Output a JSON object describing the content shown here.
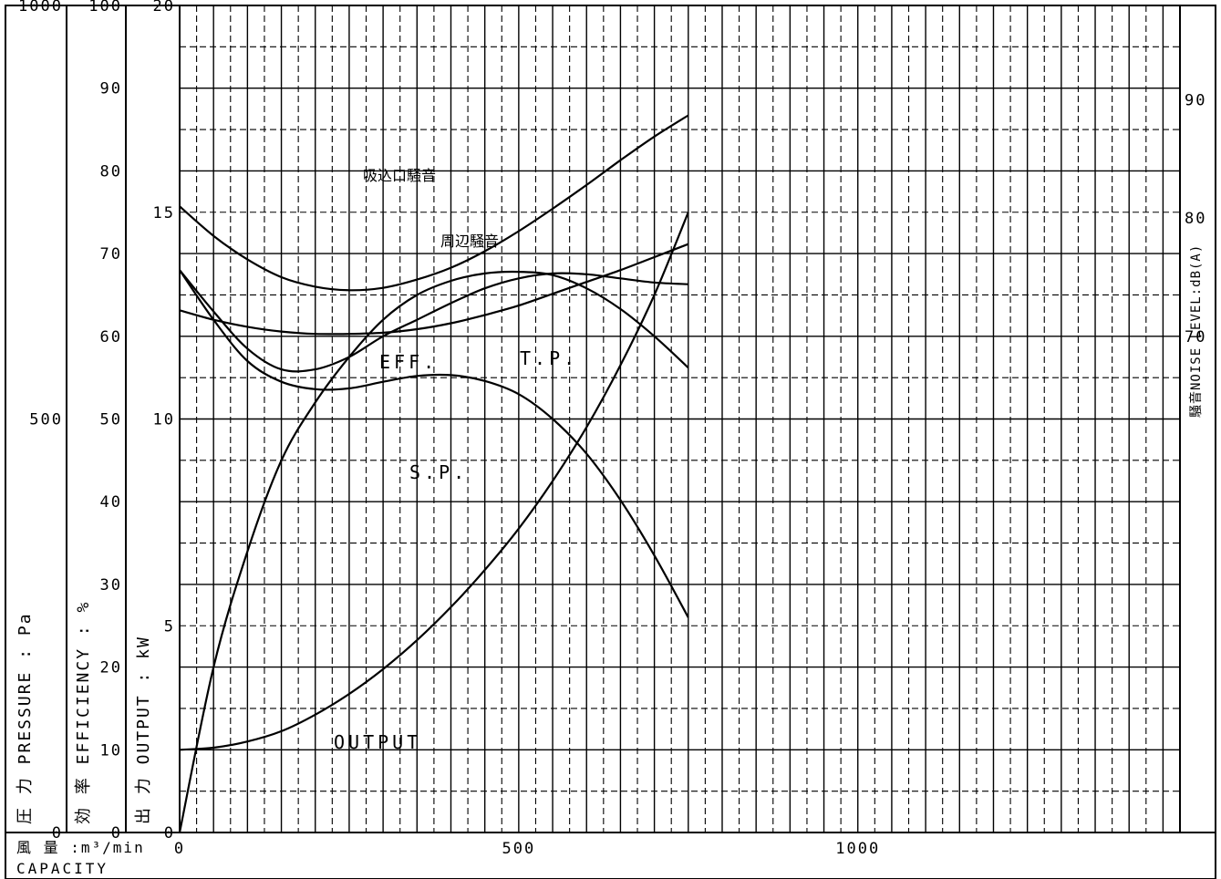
{
  "chart_data": {
    "type": "line",
    "title": "",
    "x_axis": {
      "label_jp": "風 量 :m³/min",
      "label_en": "CAPACITY",
      "ticks": [
        0,
        500,
        1000
      ],
      "range": [
        0,
        1475
      ]
    },
    "axes": {
      "pressure": {
        "label": "圧 力 PRESSURE : Pa",
        "ticks": [
          0,
          500,
          1000
        ],
        "range": [
          0,
          1000
        ]
      },
      "efficiency": {
        "label": "効 率 EFFICIENCY : %",
        "ticks": [
          0,
          10,
          20,
          30,
          40,
          50,
          60,
          70,
          80,
          90,
          100
        ],
        "range": [
          0,
          100
        ]
      },
      "output": {
        "label": "出 力 OUTPUT : kW",
        "ticks": [
          0,
          5,
          10,
          15,
          20
        ],
        "range": [
          0,
          20
        ]
      },
      "noise": {
        "label": "騒音NOISE LEVEL:dB(A)",
        "ticks": [
          70,
          80,
          90
        ],
        "range": [
          28,
          98
        ]
      }
    },
    "grid": true,
    "series": [
      {
        "name": "EFF.",
        "axis": "efficiency",
        "x": [
          0,
          50,
          100,
          150,
          200,
          250,
          300,
          350,
          400,
          450,
          500,
          550,
          600,
          650,
          700,
          750
        ],
        "y": [
          0,
          20,
          34,
          45,
          52,
          57.5,
          62,
          65,
          66.7,
          67.6,
          67.8,
          67.4,
          65.8,
          63.3,
          60,
          56.2
        ]
      },
      {
        "name": "T.P.",
        "axis": "pressure",
        "x": [
          0,
          50,
          100,
          150,
          200,
          250,
          300,
          350,
          400,
          450,
          500,
          550,
          600,
          650,
          700,
          750
        ],
        "y": [
          680,
          630,
          585,
          560,
          560,
          575,
          600,
          620,
          640,
          658,
          670,
          676,
          675,
          670,
          665,
          663
        ]
      },
      {
        "name": "S.P.",
        "axis": "pressure",
        "x": [
          0,
          50,
          100,
          150,
          200,
          250,
          300,
          350,
          400,
          450,
          500,
          550,
          600,
          650,
          700,
          750
        ],
        "y": [
          680,
          620,
          570,
          545,
          536,
          537,
          545,
          552,
          553,
          546,
          530,
          500,
          458,
          402,
          335,
          260
        ]
      },
      {
        "name": "OUTPUT",
        "axis": "output",
        "x": [
          0,
          50,
          100,
          150,
          200,
          250,
          300,
          350,
          400,
          450,
          500,
          550,
          600,
          650,
          700,
          750
        ],
        "y": [
          2,
          2.05,
          2.2,
          2.45,
          2.85,
          3.35,
          3.95,
          4.65,
          5.45,
          6.35,
          7.35,
          8.5,
          9.8,
          11.3,
          13,
          15
        ]
      },
      {
        "name": "吸込口騒音",
        "axis": "noise",
        "x": [
          0,
          50,
          100,
          150,
          200,
          250,
          300,
          350,
          400,
          450,
          500,
          550,
          600,
          650,
          700,
          750
        ],
        "y": [
          81,
          78.5,
          76.5,
          75,
          74.2,
          73.9,
          74.1,
          74.8,
          75.8,
          77.2,
          78.9,
          80.8,
          82.8,
          84.9,
          86.9,
          88.7
        ]
      },
      {
        "name": "周辺騒音",
        "axis": "noise",
        "x": [
          0,
          50,
          100,
          150,
          200,
          250,
          300,
          350,
          400,
          450,
          500,
          550,
          600,
          650,
          700,
          750
        ],
        "y": [
          72.2,
          71.4,
          70.8,
          70.4,
          70.2,
          70.2,
          70.3,
          70.6,
          71.1,
          71.8,
          72.6,
          73.6,
          74.6,
          75.6,
          76.7,
          77.8
        ]
      }
    ],
    "annotations": {
      "eff": "EFF.",
      "tp": "T.P.",
      "sp": "S.P.",
      "output": "OUTPUT",
      "suction_noise": "吸込口騒音",
      "ambient_noise": "周辺騒音"
    }
  }
}
